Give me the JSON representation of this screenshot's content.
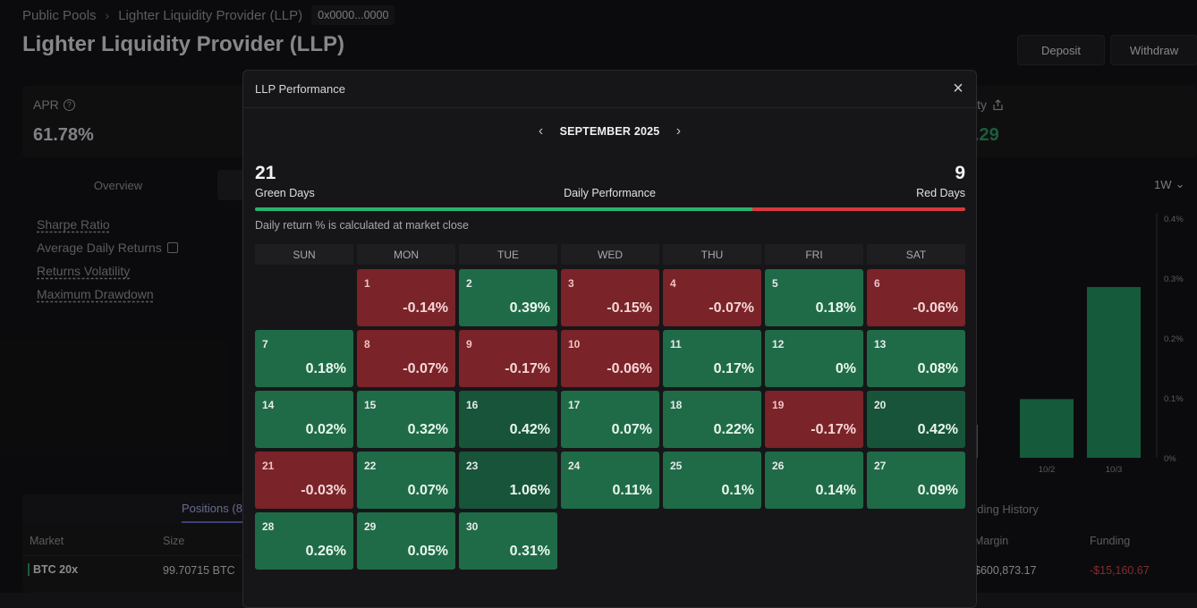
{
  "breadcrumb": {
    "root": "Public Pools",
    "current": "Lighter Liquidity Provider (LLP)",
    "address": "0x0000...0000"
  },
  "page": {
    "title": "Lighter Liquidity Provider (LLP)",
    "deposit_label": "Deposit",
    "withdraw_label": "Withdraw"
  },
  "apr": {
    "label": "APR",
    "value": "61.78%"
  },
  "right_card": {
    "label_fragment": "ity",
    "value_fragment": ".29"
  },
  "tabs": {
    "overview": "Overview"
  },
  "metrics": [
    "Sharpe Ratio",
    "Average Daily Returns",
    "Returns Volatility",
    "Maximum Drawdown"
  ],
  "range_selector": {
    "value": "1W"
  },
  "chart_data": {
    "type": "bar",
    "categories": [
      "",
      "10/2",
      "10/3"
    ],
    "values": [
      0.055,
      0.098,
      0.285
    ],
    "ylim": [
      0,
      0.4
    ],
    "yticks": [
      "0%",
      "0.1%",
      "0.2%",
      "0.3%",
      "0.4%"
    ],
    "color": "#1f8a5b"
  },
  "positions": {
    "tab_label": "Positions (8",
    "columns": {
      "market": "Market",
      "size": "Size"
    },
    "row": {
      "market": "BTC 20x",
      "size": "99.70715 BTC"
    }
  },
  "funding": {
    "tab_label": "nding History",
    "columns": {
      "margin": "Margin",
      "funding": "Funding"
    },
    "row": {
      "margin": "$600,873.17",
      "funding": "-$15,160.67"
    }
  },
  "modal": {
    "title": "LLP Performance",
    "month": "SEPTEMBER 2025",
    "green_days": "21",
    "green_label": "Green Days",
    "red_days": "9",
    "red_label": "Red Days",
    "center_label": "Daily Performance",
    "green_fraction": 0.7,
    "note": "Daily return % is calculated at market close",
    "weekdays": [
      "SUN",
      "MON",
      "TUE",
      "WED",
      "THU",
      "FRI",
      "SAT"
    ],
    "colors": {
      "green": "#29b36d",
      "red": "#d8383f"
    },
    "days": [
      {
        "day": "1",
        "value": "-0.14%"
      },
      {
        "day": "2",
        "value": "0.39%"
      },
      {
        "day": "3",
        "value": "-0.15%"
      },
      {
        "day": "4",
        "value": "-0.07%"
      },
      {
        "day": "5",
        "value": "0.18%"
      },
      {
        "day": "6",
        "value": "-0.06%"
      },
      {
        "day": "7",
        "value": "0.18%"
      },
      {
        "day": "8",
        "value": "-0.07%"
      },
      {
        "day": "9",
        "value": "-0.17%"
      },
      {
        "day": "10",
        "value": "-0.06%"
      },
      {
        "day": "11",
        "value": "0.17%"
      },
      {
        "day": "12",
        "value": "0%"
      },
      {
        "day": "13",
        "value": "0.08%"
      },
      {
        "day": "14",
        "value": "0.02%"
      },
      {
        "day": "15",
        "value": "0.32%"
      },
      {
        "day": "16",
        "value": "0.42%"
      },
      {
        "day": "17",
        "value": "0.07%"
      },
      {
        "day": "18",
        "value": "0.22%"
      },
      {
        "day": "19",
        "value": "-0.17%"
      },
      {
        "day": "20",
        "value": "0.42%"
      },
      {
        "day": "21",
        "value": "-0.03%"
      },
      {
        "day": "22",
        "value": "0.07%"
      },
      {
        "day": "23",
        "value": "1.06%"
      },
      {
        "day": "24",
        "value": "0.11%"
      },
      {
        "day": "25",
        "value": "0.1%"
      },
      {
        "day": "26",
        "value": "0.14%"
      },
      {
        "day": "27",
        "value": "0.09%"
      },
      {
        "day": "28",
        "value": "0.26%"
      },
      {
        "day": "29",
        "value": "0.05%"
      },
      {
        "day": "30",
        "value": "0.31%"
      }
    ]
  }
}
